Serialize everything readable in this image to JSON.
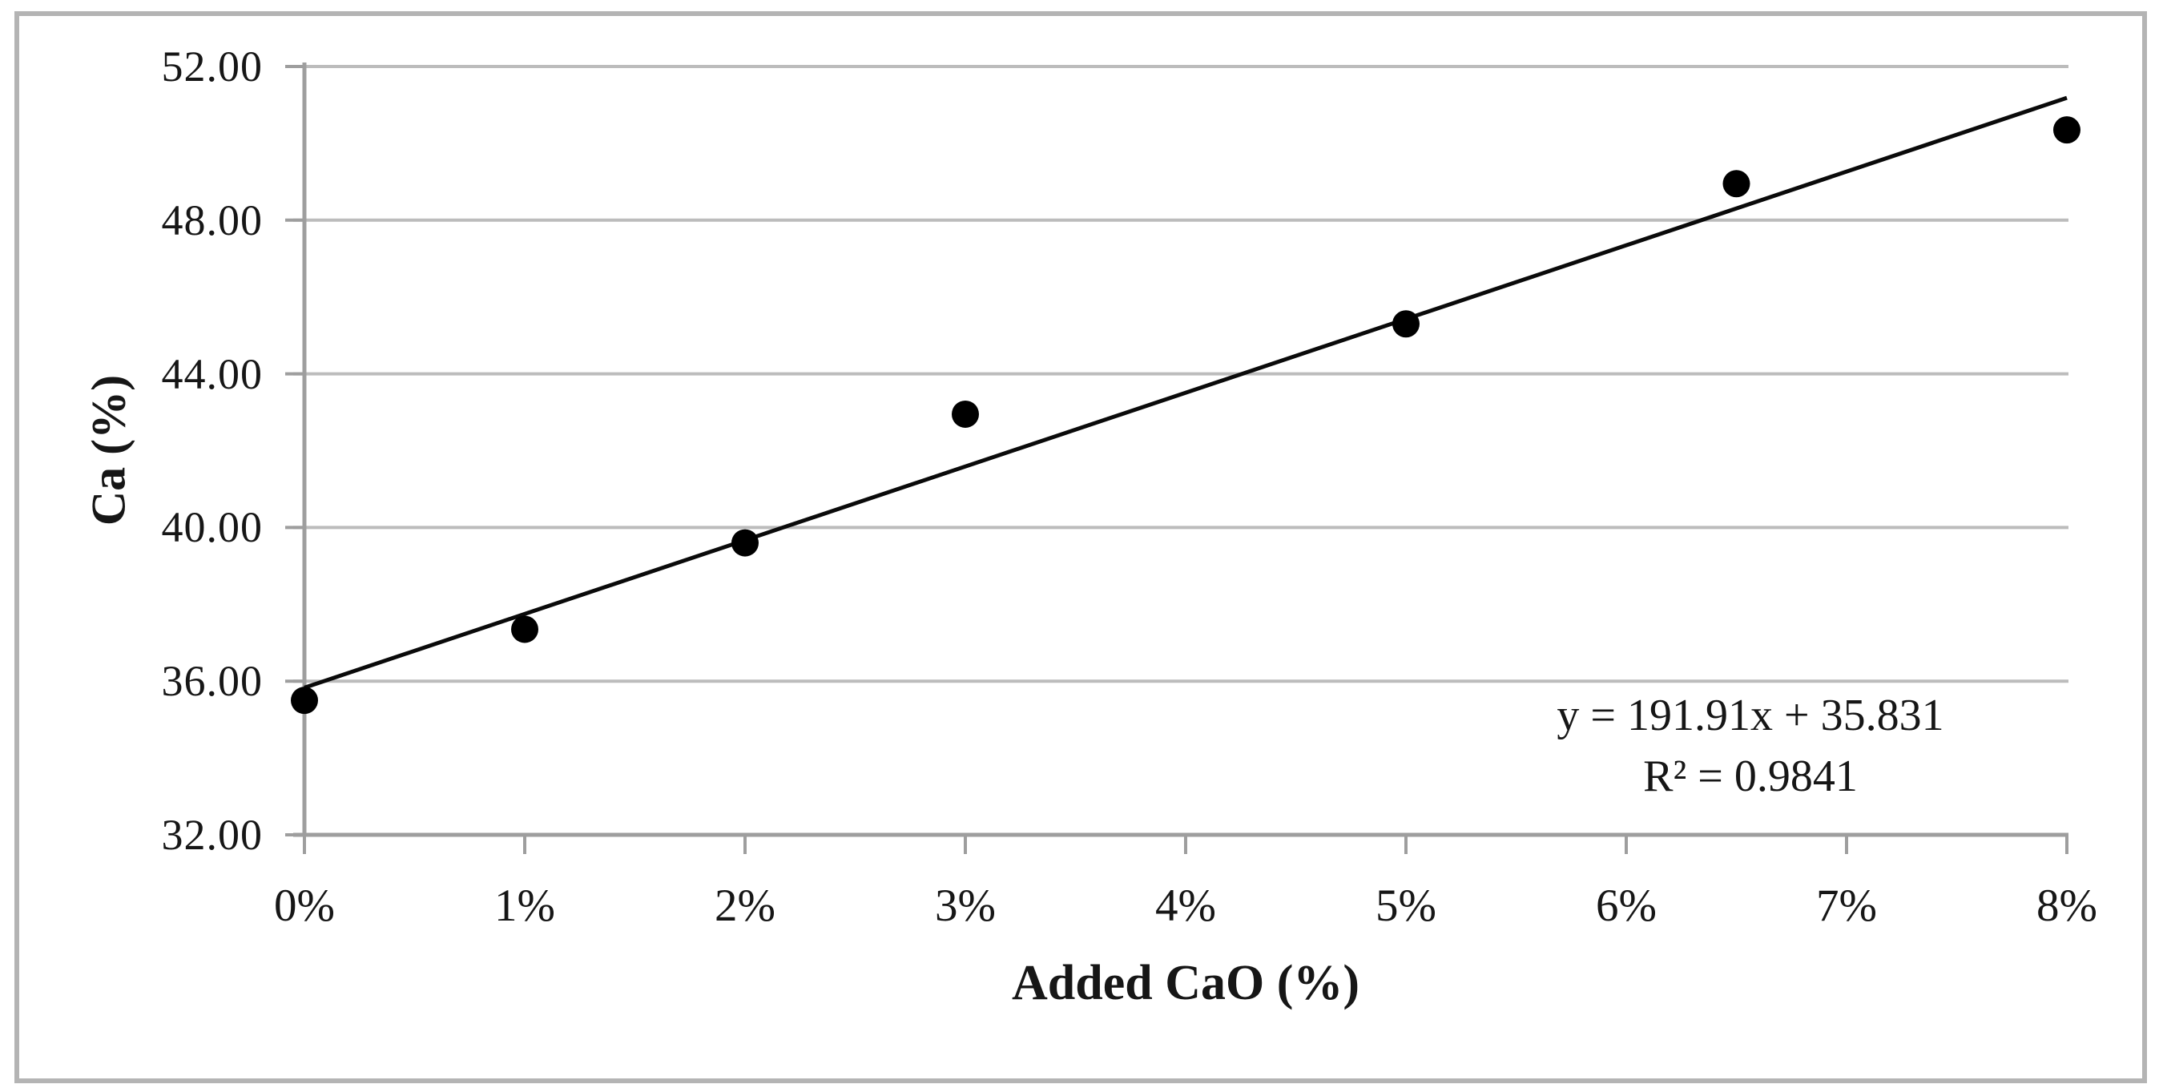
{
  "chart_data": {
    "type": "scatter",
    "title": "",
    "xlabel": "Added CaO (%)",
    "ylabel": "Ca (%)",
    "xlim": [
      0,
      8
    ],
    "ylim": [
      32,
      52
    ],
    "grid": "horizontal",
    "legend": "none",
    "x_tick_values": [
      0,
      1,
      2,
      3,
      4,
      5,
      6,
      7,
      8
    ],
    "x_tick_labels": [
      "0%",
      "1%",
      "2%",
      "3%",
      "4%",
      "5%",
      "6%",
      "7%",
      "8%"
    ],
    "y_tick_values": [
      32,
      36,
      40,
      44,
      48,
      52
    ],
    "y_tick_labels": [
      "32.00",
      "36.00",
      "40.00",
      "44.00",
      "48.00",
      "52.00"
    ],
    "points": [
      {
        "x": 0,
        "y": 35.5
      },
      {
        "x": 1,
        "y": 37.35
      },
      {
        "x": 2,
        "y": 39.6
      },
      {
        "x": 3,
        "y": 42.95
      },
      {
        "x": 5,
        "y": 45.3
      },
      {
        "x": 6.5,
        "y": 48.95
      },
      {
        "x": 8,
        "y": 50.35
      }
    ],
    "trendline": {
      "slope_per_fraction": 191.91,
      "intercept": 35.831,
      "x_start": 0,
      "x_end": 8,
      "equation_label": "y = 191.91x + 35.831",
      "r2_label": "R² = 0.9841"
    },
    "colors": {
      "background": "#ffffff",
      "frame_border": "#b4b4b4",
      "gridline": "#bcbcbc",
      "axis": "#9e9e9e",
      "trendline": "#0a0a0a",
      "point": "#000000",
      "text": "#161616"
    }
  }
}
